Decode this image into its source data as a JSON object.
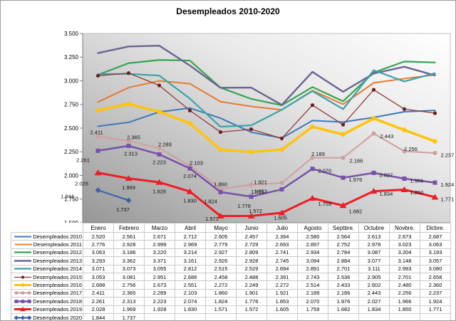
{
  "chart_data": {
    "type": "line",
    "title": "Desempleados 2010-2020",
    "categories": [
      "Enero",
      "Febrero",
      "Marzo",
      "Abril",
      "Mayo",
      "Junio",
      "Julio",
      "Agosto",
      "Septbre.",
      "Octubre",
      "Novbre.",
      "Dicbre."
    ],
    "ylim": [
      1500,
      3500
    ],
    "ytick_step": 250,
    "ytick_labels": [
      "1.500",
      "1.750",
      "2.000",
      "2.250",
      "2.500",
      "2.750",
      "3.000",
      "3.250",
      "3.500"
    ],
    "grid": false,
    "legend_position": "table-rows-left",
    "number_format": "thousands-dot",
    "plot_area_gradient": [
      "#ffffff",
      "#e9e9e9",
      "#c0c0c0",
      "#969696"
    ],
    "series": [
      {
        "name": "Desempleados 2010",
        "color": "#3e7ab8",
        "marker": "none",
        "line_width": 2,
        "data_labels": false,
        "values": [
          2520,
          2561,
          2671,
          2712,
          2605,
          2457,
          2394,
          2580,
          2564,
          2613,
          2673,
          2687
        ]
      },
      {
        "name": "Desempleados 2011",
        "color": "#e9792e",
        "marker": "none",
        "line_width": 2,
        "data_labels": false,
        "values": [
          2776,
          2928,
          2999,
          2969,
          2779,
          2729,
          2693,
          2897,
          2752,
          2978,
          3023,
          3063
        ]
      },
      {
        "name": "Desempleados 2012",
        "color": "#33a54f",
        "marker": "none",
        "line_width": 2.2,
        "data_labels": false,
        "values": [
          3063,
          3186,
          3220,
          3214,
          2927,
          2809,
          2741,
          2934,
          2784,
          3087,
          3204,
          3193
        ]
      },
      {
        "name": "Desempleados 2013",
        "color": "#6d6394",
        "marker": "none",
        "line_width": 2.4,
        "data_labels": false,
        "values": [
          3293,
          3362,
          3371,
          3161,
          2926,
          2928,
          2745,
          3094,
          2884,
          3077,
          3148,
          3057
        ]
      },
      {
        "name": "Desempleados 2014",
        "color": "#3aa3ac",
        "marker": "none",
        "line_width": 2.2,
        "data_labels": false,
        "values": [
          3071,
          3073,
          3055,
          2812,
          2515,
          2529,
          2694,
          2891,
          2701,
          3111,
          2993,
          3080
        ]
      },
      {
        "name": "Desempleados 2015",
        "color": "#8e3b3b",
        "marker": "circle-small",
        "marker_color": "#6b2024",
        "line_width": 1.3,
        "data_labels": false,
        "values": [
          3053,
          3081,
          2951,
          2686,
          2458,
          2488,
          2391,
          2743,
          2536,
          2905,
          2701,
          2658
        ]
      },
      {
        "name": "Desempleados 2016",
        "color": "#fdc40e",
        "marker": "diamond",
        "marker_color": "#fdc40e",
        "line_width": 3.6,
        "data_labels": false,
        "values": [
          2688,
          2756,
          2673,
          2551,
          2272,
          2249,
          2272,
          2514,
          2433,
          2602,
          2480,
          2360
        ]
      },
      {
        "name": "Desempleados 2017",
        "color": "#cf9f9f",
        "marker": "circle",
        "marker_color": "#cf9f9f",
        "line_width": 2,
        "data_labels": true,
        "values": [
          2411,
          2365,
          2289,
          2103,
          1860,
          1901,
          1921,
          2189,
          2186,
          2443,
          2256,
          2237
        ]
      },
      {
        "name": "Desempleados 2018",
        "color": "#7752a8",
        "marker": "square",
        "marker_color": "#7752a8",
        "line_width": 2.5,
        "data_labels": true,
        "values": [
          2261,
          2313,
          2223,
          2074,
          1824,
          1776,
          1853,
          2070,
          1976,
          2027,
          1966,
          1924
        ]
      },
      {
        "name": "Desempleados 2019",
        "color": "#ee1c25",
        "marker": "triangle",
        "marker_color": "#ee1c25",
        "line_width": 3,
        "data_labels": true,
        "values": [
          2028,
          1969,
          1928,
          1830,
          1571,
          1572,
          1605,
          1759,
          1682,
          1834,
          1850,
          1771
        ]
      },
      {
        "name": "Desempleados 2020",
        "color": "#3b62ab",
        "marker": "diamond",
        "marker_color": "#3b62ab",
        "line_width": 2.2,
        "data_labels": true,
        "values": [
          1844,
          1737
        ]
      }
    ]
  }
}
